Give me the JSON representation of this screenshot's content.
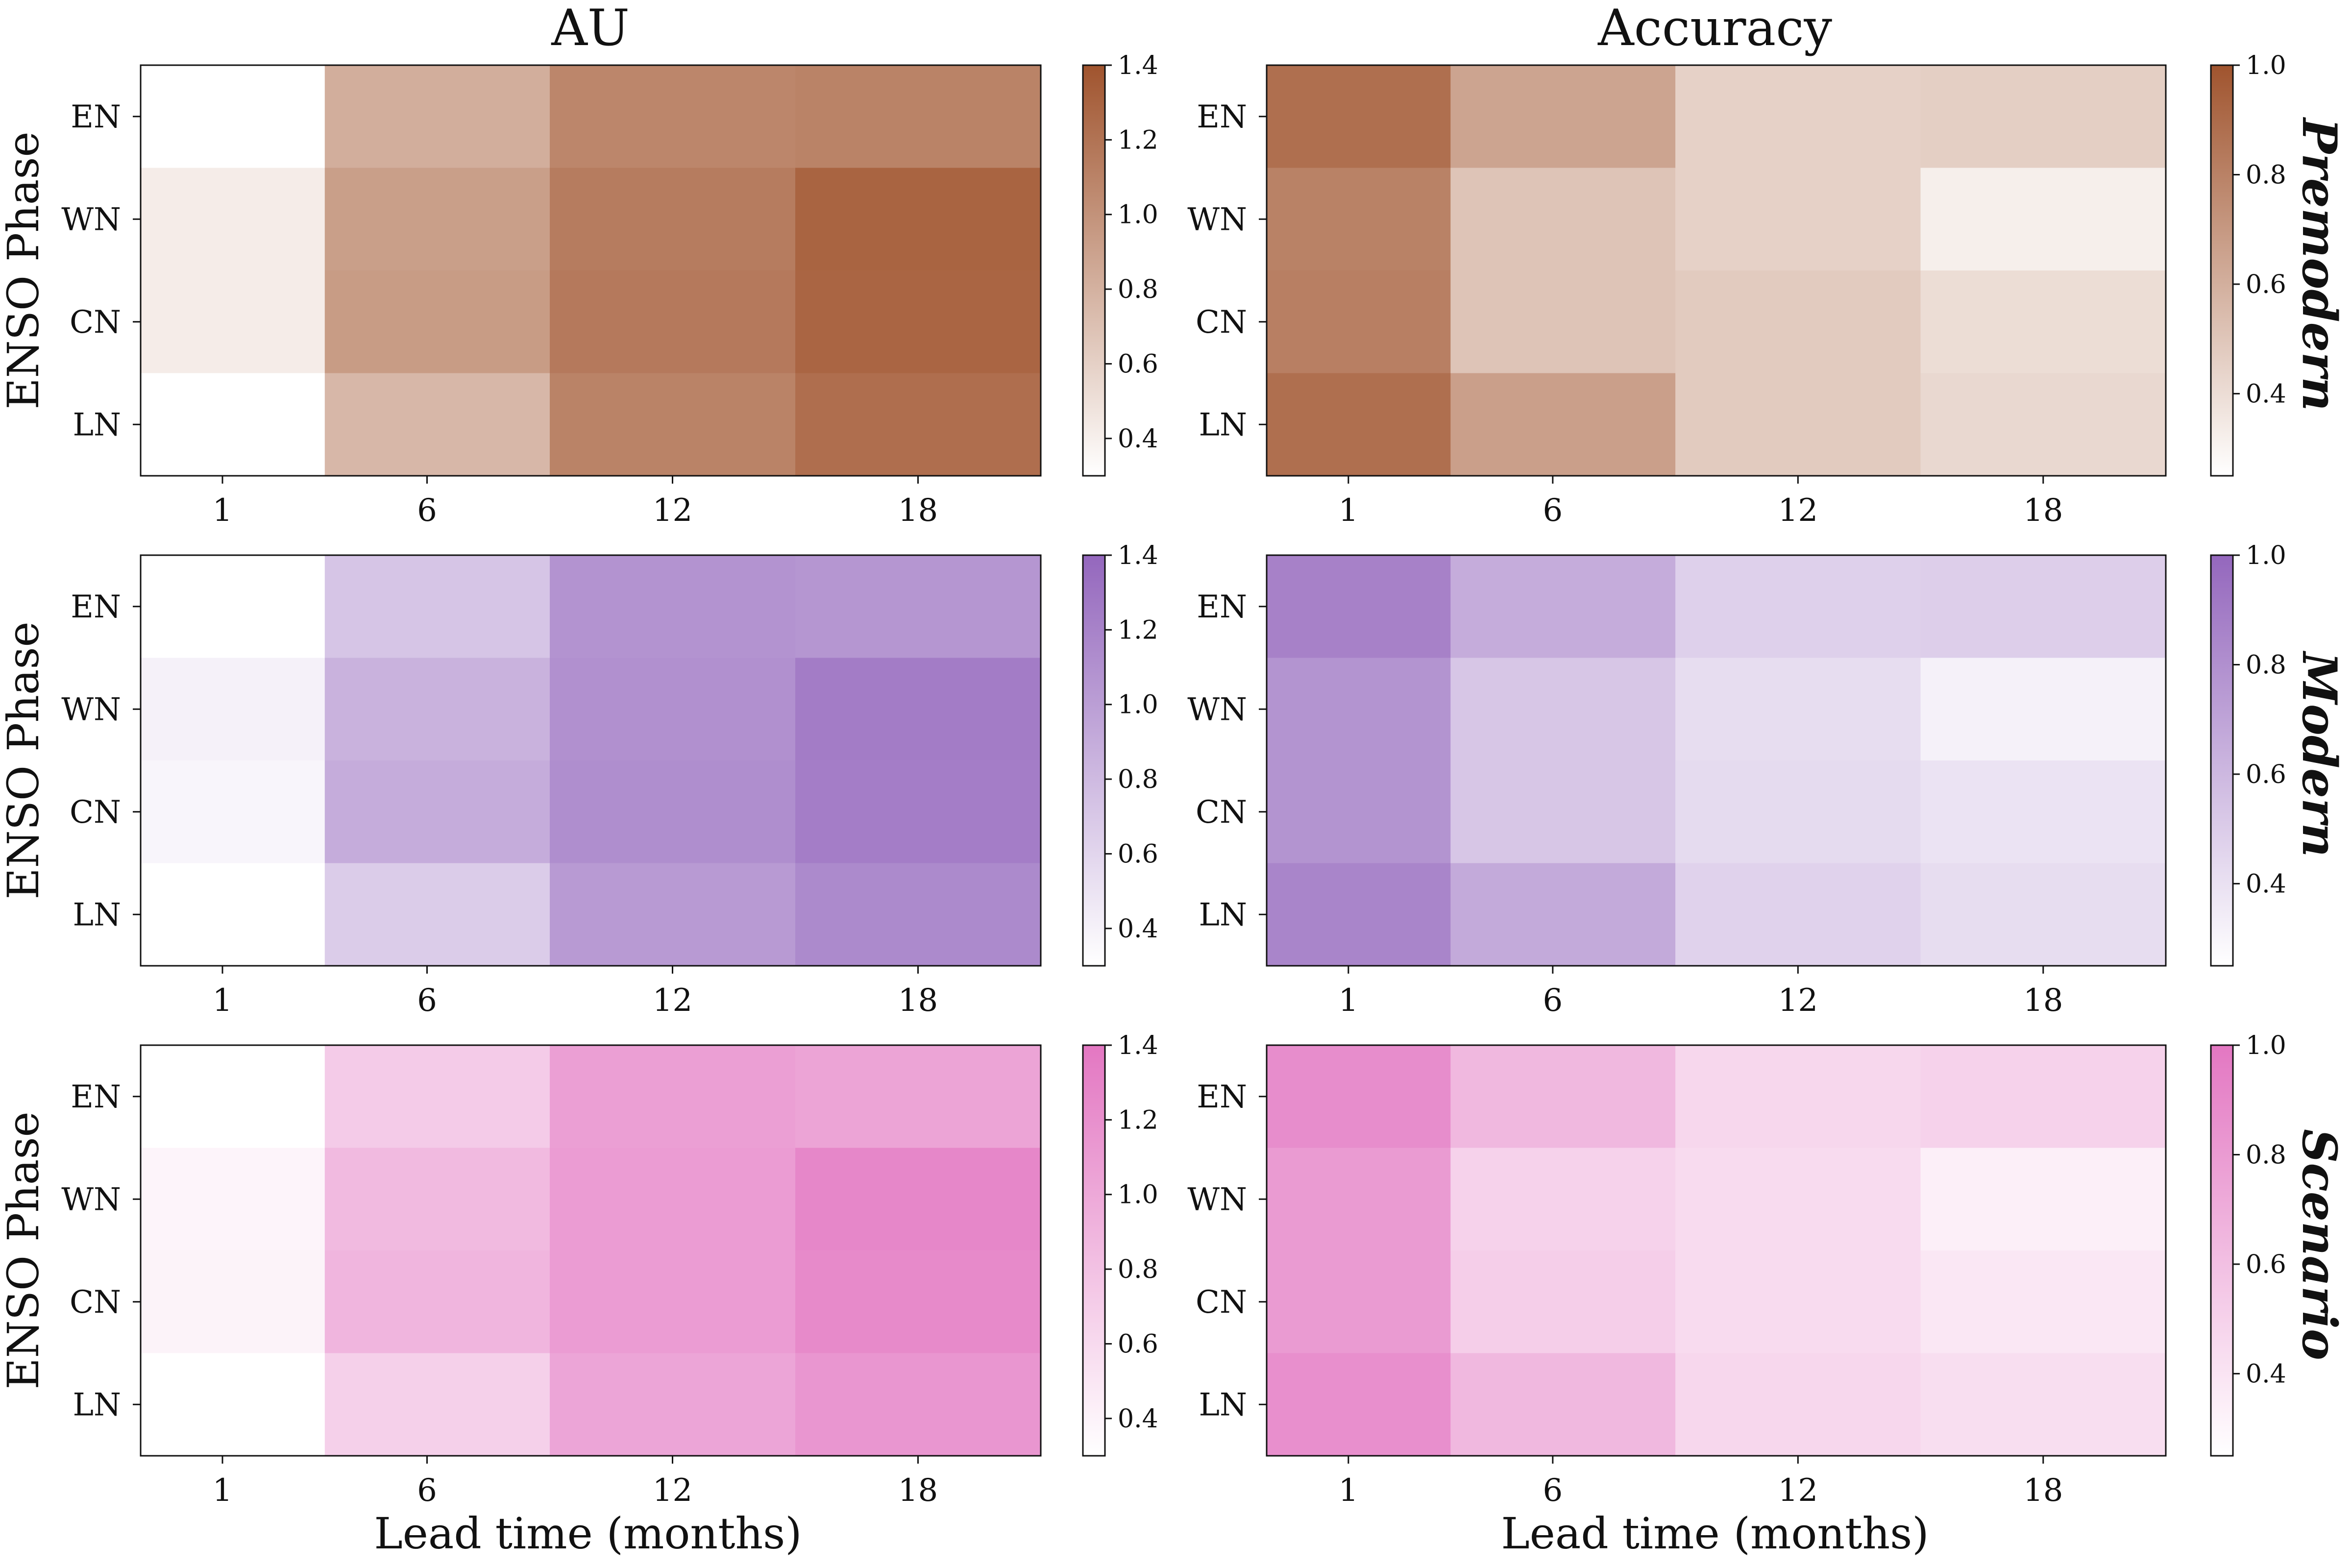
{
  "chart_data": {
    "type": "heatmap",
    "col_titles": [
      "AU",
      "Accuracy"
    ],
    "row_titles": [
      "Premodern",
      "Modern",
      "Scenario"
    ],
    "xlabel": "Lead time (months)",
    "ylabel": "ENSO Phase",
    "x_ticks": [
      "1",
      "6",
      "12",
      "18"
    ],
    "y_ticks": [
      "EN",
      "WN",
      "CN",
      "LN"
    ],
    "colorbars": {
      "AU": {
        "range": [
          0.3,
          1.4
        ],
        "ticks": [
          "0.4",
          "0.6",
          "0.8",
          "1.0",
          "1.2",
          "1.4"
        ]
      },
      "Accuracy": {
        "range": [
          0.25,
          1.0
        ],
        "ticks": [
          "0.4",
          "0.6",
          "0.8",
          "1.0"
        ]
      }
    },
    "colors": {
      "Premodern": "#a0542e",
      "Modern": "#9467bd",
      "Scenario": "#e377c2"
    },
    "panels": [
      {
        "row": "Premodern",
        "metric": "AU",
        "values": [
          [
            0.3,
            0.82,
            1.08,
            1.1
          ],
          [
            0.42,
            0.92,
            1.14,
            1.3
          ],
          [
            0.42,
            0.94,
            1.16,
            1.29
          ],
          [
            0.3,
            0.76,
            1.1,
            1.23
          ]
        ]
      },
      {
        "row": "Premodern",
        "metric": "Accuracy",
        "values": [
          [
            0.88,
            0.65,
            0.45,
            0.46
          ],
          [
            0.8,
            0.51,
            0.45,
            0.32
          ],
          [
            0.81,
            0.51,
            0.48,
            0.4
          ],
          [
            0.88,
            0.67,
            0.48,
            0.42
          ]
        ]
      },
      {
        "row": "Modern",
        "metric": "AU",
        "values": [
          [
            0.3,
            0.72,
            1.08,
            1.06
          ],
          [
            0.4,
            0.86,
            1.1,
            1.25
          ],
          [
            0.37,
            0.9,
            1.12,
            1.24
          ],
          [
            0.3,
            0.67,
            1.03,
            1.15
          ]
        ]
      },
      {
        "row": "Modern",
        "metric": "Accuracy",
        "values": [
          [
            0.87,
            0.66,
            0.48,
            0.49
          ],
          [
            0.78,
            0.53,
            0.42,
            0.32
          ],
          [
            0.78,
            0.53,
            0.43,
            0.39
          ],
          [
            0.85,
            0.67,
            0.47,
            0.42
          ]
        ]
      },
      {
        "row": "Scenario",
        "metric": "AU",
        "values": [
          [
            0.3,
            0.72,
            1.08,
            1.04
          ],
          [
            0.39,
            0.86,
            1.1,
            1.27
          ],
          [
            0.4,
            0.9,
            1.1,
            1.25
          ],
          [
            0.3,
            0.68,
            1.03,
            1.15
          ]
        ]
      },
      {
        "row": "Scenario",
        "metric": "Accuracy",
        "values": [
          [
            0.88,
            0.64,
            0.47,
            0.5
          ],
          [
            0.8,
            0.5,
            0.45,
            0.34
          ],
          [
            0.8,
            0.52,
            0.45,
            0.38
          ],
          [
            0.87,
            0.64,
            0.47,
            0.43
          ]
        ]
      }
    ]
  }
}
